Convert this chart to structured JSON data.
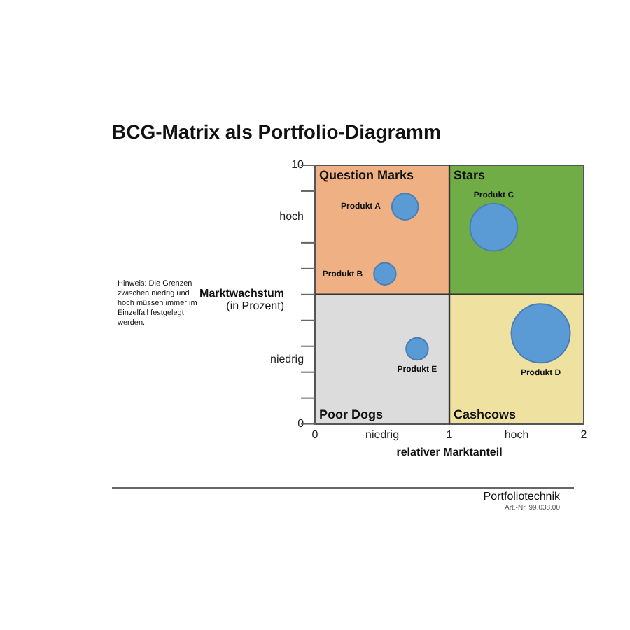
{
  "chart_data": {
    "type": "bubble",
    "title": "BCG-Matrix als Portfolio-Diagramm",
    "xlabel": "relativer Marktanteil",
    "ylabel": "Marktwachstum (in Prozent)",
    "xlim": [
      0,
      2
    ],
    "xticks": [
      0,
      {
        "value": 0.5,
        "label": "niedrig"
      },
      1,
      {
        "value": 1.5,
        "label": "hoch"
      },
      2
    ],
    "ylim": [
      0,
      10
    ],
    "yticks": [
      0,
      {
        "value": 1,
        "label": null
      },
      {
        "value": 2,
        "label": null
      },
      {
        "value": 2.5,
        "label": "niedrig"
      },
      {
        "value": 3,
        "label": null
      },
      {
        "value": 4,
        "label": null
      },
      {
        "value": 5,
        "label": null
      },
      {
        "value": 6,
        "label": null
      },
      {
        "value": 7,
        "label": null
      },
      {
        "value": 8,
        "label": "hoch"
      },
      {
        "value": 9,
        "label": null
      },
      10
    ],
    "series": [
      {
        "name": "Produkt A",
        "color": "#5b9bd5",
        "x": [
          0.67
        ],
        "values": [
          8.4
        ],
        "sizes": [
          0.2
        ]
      },
      {
        "name": "Produkt B",
        "color": "#5b9bd5",
        "x": [
          0.52
        ],
        "values": [
          5.8
        ],
        "sizes": [
          0.14
        ]
      },
      {
        "name": "Produkt C",
        "color": "#5b9bd5",
        "x": [
          1.33
        ],
        "values": [
          7.6
        ],
        "sizes": [
          0.65
        ]
      },
      {
        "name": "Produkt D",
        "color": "#5b9bd5",
        "x": [
          1.68
        ],
        "values": [
          3.5
        ],
        "sizes": [
          1
        ]
      },
      {
        "name": "Produkt E",
        "color": "#5b9bd5",
        "x": [
          0.76
        ],
        "values": [
          2.9
        ],
        "sizes": [
          0.14
        ]
      }
    ],
    "ref_lines": [
      {
        "axis": "x",
        "value": 1,
        "color": "#333333"
      },
      {
        "axis": "y",
        "value": 5,
        "color": "#333333"
      }
    ],
    "annotations": [
      "Question Marks",
      "Stars",
      "Poor Dogs",
      "Cashcows",
      "Hinweis: Die Grenzen zwischen niedrig und hoch müssen immer im Einzelfall festgelegt werden.",
      "Portfoliotechnik",
      "Art.-Nr. 99.038.00"
    ],
    "grid": false,
    "legend": false
  }
}
